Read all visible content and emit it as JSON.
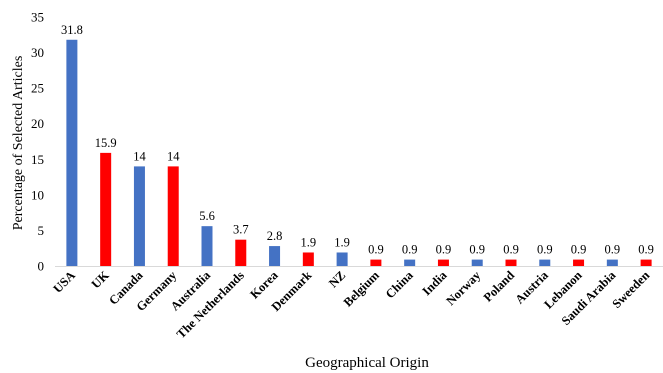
{
  "chart_data": {
    "type": "bar",
    "title": "",
    "xlabel": "Geographical Origin",
    "ylabel": "Percentage of Selected Articles",
    "ylim": [
      0,
      35
    ],
    "yticks": [
      0,
      5,
      10,
      15,
      20,
      25,
      30,
      35
    ],
    "grid": false,
    "legend": "none",
    "categories": [
      "USA",
      "UK",
      "Canada",
      "Germany",
      "Australia",
      "The Netherlands",
      "Korea",
      "Denmark",
      "NZ",
      "Belgium",
      "China",
      "India",
      "Norway",
      "Poland",
      "Austria",
      "Lebanon",
      "Saudi Arabia",
      "Sweeden"
    ],
    "values": [
      31.8,
      15.9,
      14,
      14,
      5.6,
      3.7,
      2.8,
      1.9,
      1.9,
      0.9,
      0.9,
      0.9,
      0.9,
      0.9,
      0.9,
      0.9,
      0.9,
      0.9
    ],
    "value_labels": [
      "31.8",
      "15.9",
      "14",
      "14",
      "5.6",
      "3.7",
      "2.8",
      "1.9",
      "1.9",
      "0.9",
      "0.9",
      "0.9",
      "0.9",
      "0.9",
      "0.9",
      "0.9",
      "0.9",
      "0.9"
    ],
    "bar_colors": [
      "#4472C4",
      "#FF0000",
      "#4472C4",
      "#FF0000",
      "#4472C4",
      "#FF0000",
      "#4472C4",
      "#FF0000",
      "#4472C4",
      "#FF0000",
      "#4472C4",
      "#FF0000",
      "#4472C4",
      "#FF0000",
      "#4472C4",
      "#FF0000",
      "#4472C4",
      "#FF0000"
    ],
    "axis_color": "#D9D9D9"
  }
}
